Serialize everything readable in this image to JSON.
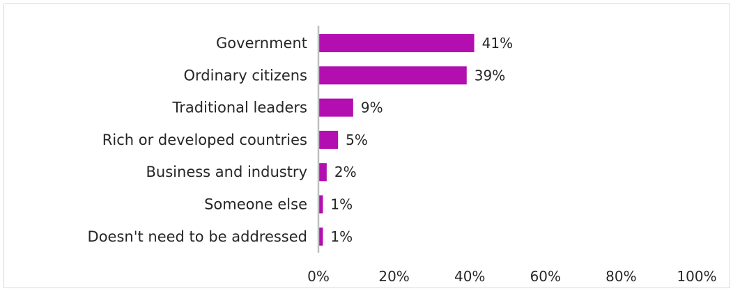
{
  "chart_data": {
    "type": "bar",
    "orientation": "horizontal",
    "title": "",
    "xlabel": "",
    "ylabel": "",
    "categories": [
      "Government",
      "Ordinary citizens",
      "Traditional leaders",
      "Rich or developed countries",
      "Business and industry",
      "Someone else",
      "Doesn't need to be addressed"
    ],
    "values": [
      41,
      39,
      9,
      5,
      2,
      1,
      1
    ],
    "value_labels": [
      "41%",
      "39%",
      "9%",
      "5%",
      "2%",
      "1%",
      "1%"
    ],
    "xlim": [
      0,
      100
    ],
    "x_ticks": [
      0,
      20,
      40,
      60,
      80,
      100
    ],
    "x_tick_labels": [
      "0%",
      "20%",
      "40%",
      "60%",
      "80%",
      "100%"
    ],
    "bar_color": "#b30fb0",
    "axis_color": "#bfbfbf",
    "grid": false,
    "legend": "none"
  }
}
